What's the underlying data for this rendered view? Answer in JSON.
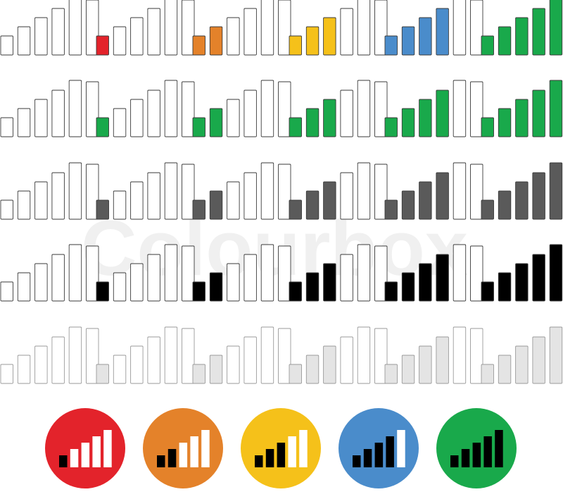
{
  "watermark": "Colourbox",
  "colors": {
    "outline": "#3a3a3a",
    "empty_fill": "#ffffff",
    "red": "#e3232b",
    "orange": "#e4822a",
    "yellow": "#f5c11a",
    "blue": "#4a8ccb",
    "green": "#19a94b",
    "dark_gray": "#5a5a5a",
    "black": "#000000",
    "light_gray": "#e4e4e4",
    "light_outline": "#9a9a9a",
    "watermark": "#f0f0f0"
  },
  "bar_count": 6,
  "rows": [
    {
      "name": "colored-levels",
      "icons": [
        {
          "filled": 0,
          "fill": "red"
        },
        {
          "filled": 1,
          "fill": "red"
        },
        {
          "filled": 2,
          "fill": "orange"
        },
        {
          "filled": 3,
          "fill": "yellow"
        },
        {
          "filled": 4,
          "fill": "blue"
        },
        {
          "filled": 6,
          "fill": "green"
        }
      ]
    },
    {
      "name": "green-levels",
      "icons": [
        {
          "filled": 0,
          "fill": "green"
        },
        {
          "filled": 1,
          "fill": "green"
        },
        {
          "filled": 2,
          "fill": "green"
        },
        {
          "filled": 3,
          "fill": "green"
        },
        {
          "filled": 4,
          "fill": "green"
        },
        {
          "filled": 5,
          "fill": "green"
        }
      ]
    },
    {
      "name": "dark-gray-levels",
      "icons": [
        {
          "filled": 0,
          "fill": "dark_gray"
        },
        {
          "filled": 1,
          "fill": "dark_gray"
        },
        {
          "filled": 2,
          "fill": "dark_gray"
        },
        {
          "filled": 3,
          "fill": "dark_gray"
        },
        {
          "filled": 4,
          "fill": "dark_gray"
        },
        {
          "filled": 6,
          "fill": "dark_gray"
        }
      ]
    },
    {
      "name": "black-levels",
      "icons": [
        {
          "filled": 0,
          "fill": "black"
        },
        {
          "filled": 1,
          "fill": "black"
        },
        {
          "filled": 2,
          "fill": "black"
        },
        {
          "filled": 3,
          "fill": "black"
        },
        {
          "filled": 4,
          "fill": "black"
        },
        {
          "filled": 6,
          "fill": "black"
        }
      ]
    },
    {
      "name": "light-gray-levels",
      "icons": [
        {
          "filled": 0,
          "fill": "light_gray"
        },
        {
          "filled": 1,
          "fill": "light_gray"
        },
        {
          "filled": 2,
          "fill": "light_gray"
        },
        {
          "filled": 3,
          "fill": "light_gray"
        },
        {
          "filled": 4,
          "fill": "light_gray"
        },
        {
          "filled": 6,
          "fill": "light_gray"
        }
      ]
    }
  ],
  "circle_icons": [
    {
      "bg": "red",
      "filled": 1
    },
    {
      "bg": "orange",
      "filled": 2
    },
    {
      "bg": "yellow",
      "filled": 3
    },
    {
      "bg": "blue",
      "filled": 4
    },
    {
      "bg": "green",
      "filled": 5
    }
  ]
}
